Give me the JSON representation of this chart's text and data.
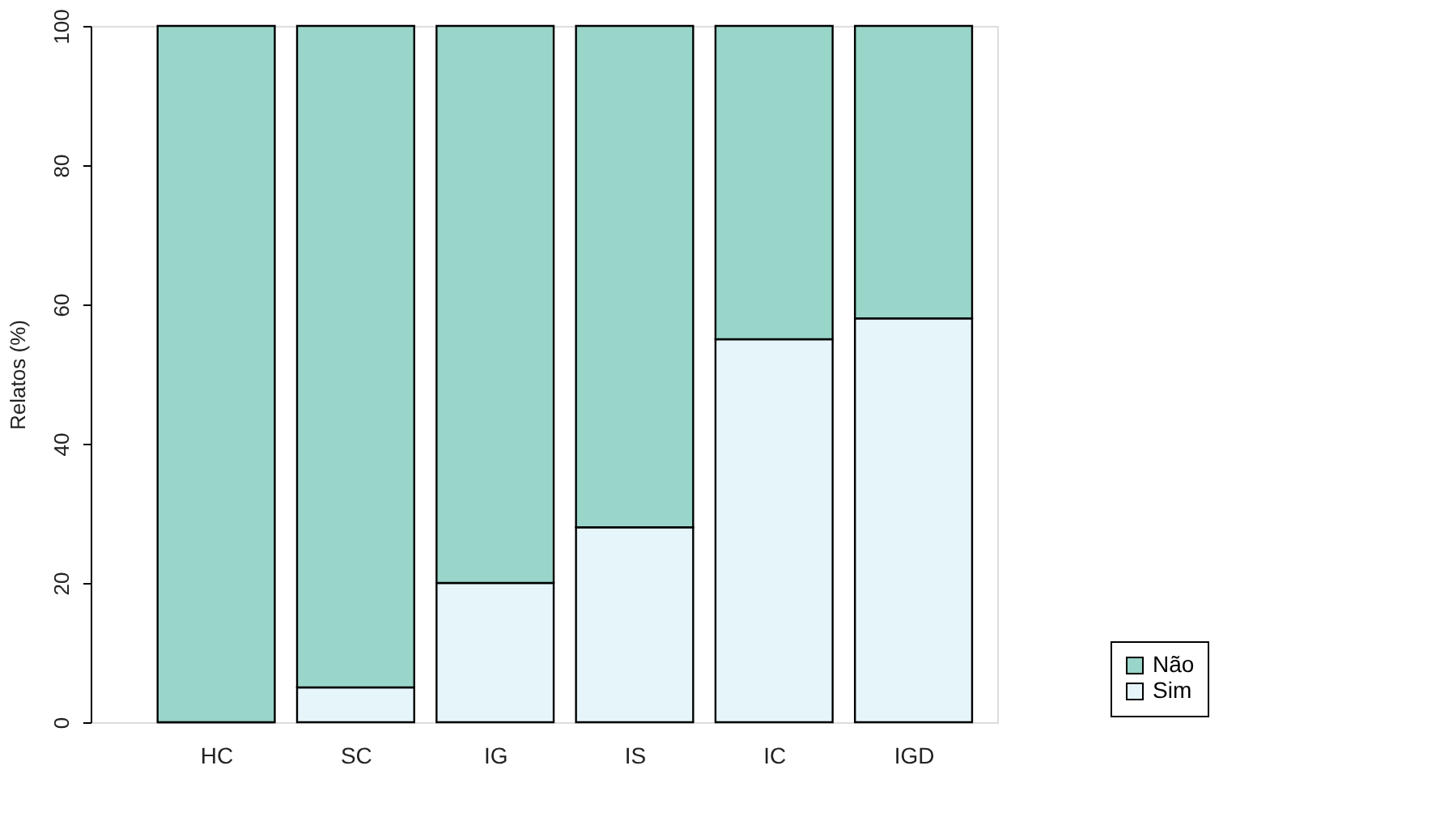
{
  "chart_data": {
    "type": "bar",
    "stacked": true,
    "ylabel": "Relatos (%)",
    "categories": [
      "HC",
      "SC",
      "IG",
      "IS",
      "IC",
      "IGD"
    ],
    "series": [
      {
        "name": "Sim",
        "color": "#e5f5f9",
        "values": [
          0,
          5,
          20,
          28,
          55,
          58
        ]
      },
      {
        "name": "Não",
        "color": "#99d5c9",
        "values": [
          100,
          95,
          80,
          72,
          45,
          42
        ]
      }
    ],
    "ylim": [
      0,
      100
    ],
    "yticks": [
      0,
      20,
      40,
      60,
      80,
      100
    ],
    "grid": false,
    "legend": "bottom right"
  }
}
